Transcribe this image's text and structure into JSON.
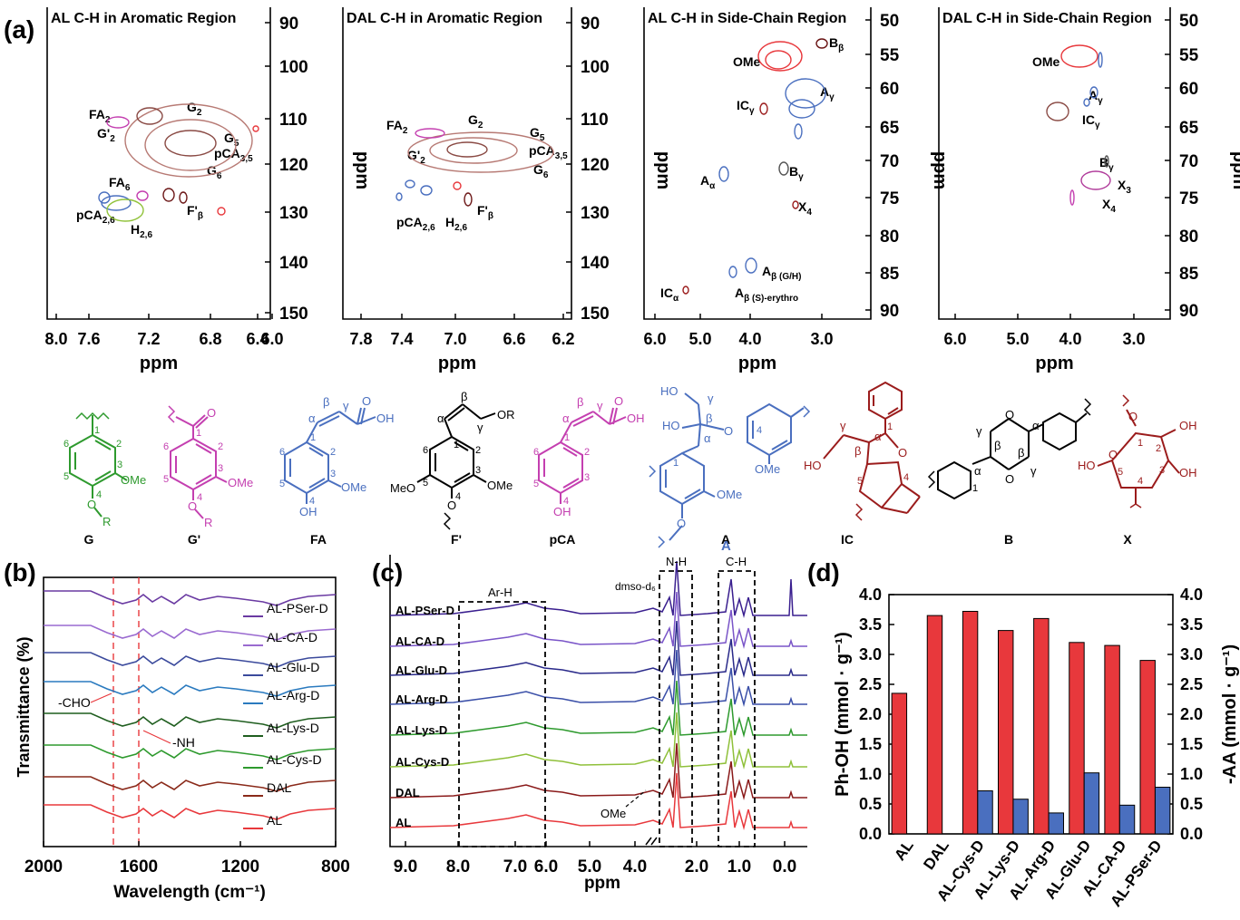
{
  "panel_labels": {
    "a": "(a)",
    "b": "(b)",
    "c": "(c)",
    "d": "(d)"
  },
  "colors": {
    "red": "#e8383c",
    "blue": "#4a6fbf",
    "green": "#2e9a2e",
    "magenta": "#c43fb0",
    "darkred": "#9b1c1c",
    "pink": "#b77a74",
    "olive": "#90c23a",
    "black": "#000000"
  },
  "nmr_panels": [
    {
      "title": "AL C-H in Aromatic Region",
      "xlabel": "ppm",
      "ylabel": "ppm",
      "xticks": [
        "8.0",
        "7.6",
        "7.2",
        "6.8",
        "6.4",
        "6.0"
      ],
      "yticks": [
        "90",
        "100",
        "110",
        "120",
        "130",
        "140",
        "150"
      ],
      "labels": [
        [
          "G2",
          "G",
          "2"
        ],
        [
          "FA2",
          "FA",
          "2"
        ],
        [
          "G'2",
          "G'",
          "2"
        ],
        [
          "G5",
          "G",
          "5"
        ],
        [
          "pCA35",
          "pCA",
          "3,5"
        ],
        [
          "G6",
          "G",
          "6"
        ],
        [
          "FA6",
          "FA",
          "6"
        ],
        [
          "F'b",
          "F'",
          "β"
        ],
        [
          "pCA26",
          "pCA",
          "2,6"
        ],
        [
          "H26",
          "H",
          "2,6"
        ]
      ]
    },
    {
      "title": "DAL C-H in Aromatic Region",
      "xlabel": "ppm",
      "ylabel": "ppm",
      "xticks": [
        "7.8",
        "7.4",
        "7.0",
        "6.6",
        "6.2"
      ],
      "yticks": [
        "90",
        "100",
        "110",
        "120",
        "130",
        "140",
        "150"
      ],
      "labels": [
        [
          "G2",
          "G",
          "2"
        ],
        [
          "FA2",
          "FA",
          "2"
        ],
        [
          "G'2",
          "G'",
          "2"
        ],
        [
          "G5",
          "G",
          "5"
        ],
        [
          "pCA35",
          "pCA",
          "3,5"
        ],
        [
          "G6",
          "G",
          "6"
        ],
        [
          "F'b",
          "F'",
          "β"
        ],
        [
          "pCA26",
          "pCA",
          "2,6"
        ],
        [
          "H26",
          "H",
          "2,6"
        ]
      ]
    },
    {
      "title": "AL C-H in Side-Chain Region",
      "xlabel": "ppm",
      "ylabel": "ppm",
      "xticks": [
        "6.0",
        "5.0",
        "4.0",
        "3.0"
      ],
      "yticks": [
        "50",
        "55",
        "60",
        "65",
        "70",
        "75",
        "80",
        "85",
        "90"
      ],
      "labels": [
        [
          "Bb",
          "B",
          "β"
        ],
        [
          "OMe",
          "OMe",
          ""
        ],
        [
          "Ag",
          "A",
          "γ"
        ],
        [
          "ICg",
          "IC",
          "γ"
        ],
        [
          "Aa",
          "A",
          "α"
        ],
        [
          "Bg",
          "B",
          "γ"
        ],
        [
          "X4",
          "X",
          "4"
        ],
        [
          "AbGH",
          "A",
          "β (G/H)"
        ],
        [
          "AbS",
          "A",
          "β (S)-erythro"
        ],
        [
          "ICa",
          "IC",
          "α"
        ]
      ]
    },
    {
      "title": "DAL C-H in Side-Chain Region",
      "xlabel": "ppm",
      "ylabel": "ppm",
      "xticks": [
        "6.0",
        "5.0",
        "4.0",
        "3.0"
      ],
      "yticks": [
        "50",
        "55",
        "60",
        "65",
        "70",
        "75",
        "80",
        "85",
        "90"
      ],
      "labels": [
        [
          "OMe",
          "OMe",
          ""
        ],
        [
          "Ag",
          "A",
          "γ"
        ],
        [
          "ICg",
          "IC",
          "γ"
        ],
        [
          "Bg",
          "B",
          "γ"
        ],
        [
          "X3",
          "X",
          "3"
        ],
        [
          "X4",
          "X",
          "4"
        ]
      ]
    }
  ],
  "structures": [
    {
      "name": "G",
      "color": "#2e9a2e"
    },
    {
      "name": "G'",
      "color": "#c43fb0"
    },
    {
      "name": "FA",
      "color": "#4a6fbf"
    },
    {
      "name": "F'",
      "color": "#000000"
    },
    {
      "name": "pCA",
      "color": "#c43fb0"
    },
    {
      "name": "A",
      "color": "#4a6fbf"
    },
    {
      "name": "IC",
      "color": "#9b1c1c"
    },
    {
      "name": "B",
      "color": "#000000"
    },
    {
      "name": "X",
      "color": "#9b1c1c"
    }
  ],
  "structure_text": {
    "ome": "OMe",
    "oh": "OH",
    "o": "O",
    "r": "R",
    "or": "OR",
    "meo": "MeO",
    "ho": "HO",
    "alpha": "α",
    "beta": "β",
    "gamma": "γ"
  },
  "ir": {
    "xlabel": "Wavelength (cm⁻¹)",
    "ylabel": "Transmittance (%)",
    "xticks": [
      "2000",
      "1600",
      "1200",
      "800"
    ],
    "series": [
      "AL-PSer-D",
      "AL-CA-D",
      "AL-Glu-D",
      "AL-Arg-D",
      "AL-Lys-D",
      "AL-Cys-D",
      "DAL",
      "AL"
    ],
    "series_colors": [
      "#6a3aa2",
      "#9a6ad0",
      "#3b4a9c",
      "#2a7abf",
      "#1f5e1f",
      "#2e9a2e",
      "#8a2a1a",
      "#e8383c"
    ],
    "annotations": {
      "cho": "-CHO",
      "nh": "-NH"
    }
  },
  "hnmr": {
    "xlabel": "ppm",
    "xticks": [
      "9.0",
      "8.0",
      "7.0",
      "6.0",
      "5.0",
      "4.0",
      "2.0",
      "1.0",
      "0.0"
    ],
    "series": [
      "AL-PSer-D",
      "AL-CA-D",
      "AL-Glu-D",
      "AL-Arg-D",
      "AL-Lys-D",
      "AL-Cys-D",
      "DAL",
      "AL"
    ],
    "series_colors": [
      "#3a1f8f",
      "#7a55c8",
      "#2a2a8a",
      "#3a4fa8",
      "#2e9a2e",
      "#8fc03a",
      "#8a1a1a",
      "#e8383c"
    ],
    "regions": {
      "arh": "Ar-H",
      "dmso": "dmso-d₆",
      "nh": "N-H",
      "ch": "C-H",
      "a": "A",
      "ome": "OMe"
    }
  },
  "chart_data": {
    "type": "bar",
    "categories": [
      "AL",
      "DAL",
      "AL-Cys-D",
      "AL-Lys-D",
      "AL-Arg-D",
      "AL-Glu-D",
      "AL-CA-D",
      "AL-PSer-D"
    ],
    "series": [
      {
        "name": "Ph-OH (mmol · g⁻¹)",
        "axis": "left",
        "color": "#e8383c",
        "values": [
          2.35,
          3.65,
          3.72,
          3.4,
          3.6,
          3.2,
          3.15,
          2.9
        ]
      },
      {
        "name": "-AA (mmol · g⁻¹)",
        "axis": "right",
        "color": "#4a6fbf",
        "values": [
          0,
          0,
          0.72,
          0.58,
          0.35,
          1.02,
          0.48,
          0.78
        ]
      }
    ],
    "ylabel_left": "Ph-OH (mmol · g⁻¹)",
    "ylabel_right": "-AA (mmol · g⁻¹)",
    "ylim": [
      0,
      4.0
    ],
    "yticks": [
      "0.0",
      "0.5",
      "1.0",
      "1.5",
      "2.0",
      "2.5",
      "3.0",
      "3.5",
      "4.0"
    ]
  }
}
